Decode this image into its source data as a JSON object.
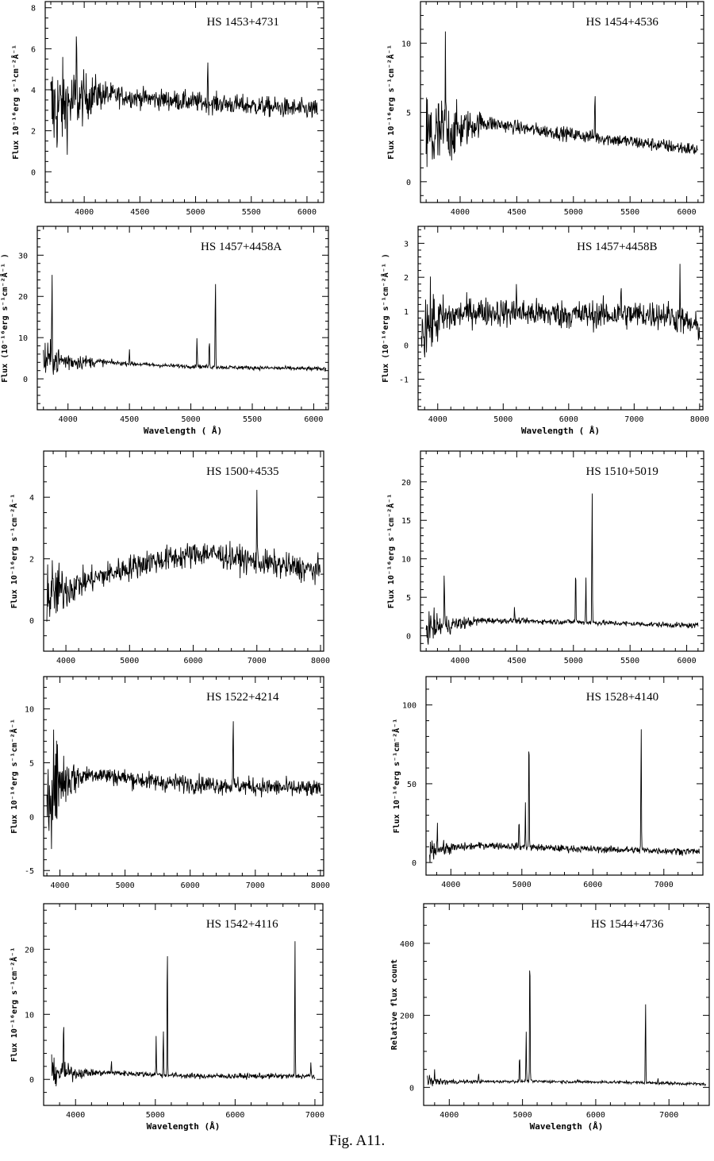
{
  "caption": "Fig. A11.",
  "chart_data": [
    {
      "type": "line",
      "title": "HS  1453+4731",
      "xlabel": "",
      "ylabel": "Flux 10⁻¹⁶erg s⁻¹cm⁻²Å⁻¹",
      "xlim": [
        3650,
        6150
      ],
      "ylim": [
        -1.5,
        8.3
      ],
      "xticks": [
        4000,
        4500,
        5000,
        5500,
        6000
      ],
      "yticks": [
        0,
        2,
        4,
        6,
        8
      ],
      "continuum": [
        [
          3700,
          3
        ],
        [
          4100,
          3.8
        ],
        [
          4500,
          3.6
        ],
        [
          5000,
          3.4
        ],
        [
          6100,
          3.0
        ]
      ],
      "noise": 0.35,
      "blue_noise": 1.6,
      "lines": [
        [
          3930,
          3.2
        ],
        [
          5110,
          2.0
        ]
      ]
    },
    {
      "type": "line",
      "title": "HS  1454+4536",
      "xlabel": "",
      "ylabel": "Flux 10⁻¹⁶erg s⁻¹cm⁻²Å⁻¹",
      "xlim": [
        3650,
        6150
      ],
      "ylim": [
        -1.5,
        13
      ],
      "xticks": [
        4000,
        4500,
        5000,
        5500,
        6000
      ],
      "yticks": [
        0,
        5,
        10
      ],
      "continuum": [
        [
          3700,
          3
        ],
        [
          4200,
          4.3
        ],
        [
          4600,
          3.8
        ],
        [
          5200,
          3.2
        ],
        [
          6100,
          2.3
        ]
      ],
      "noise": 0.35,
      "blue_noise": 2.5,
      "lines": [
        [
          3870,
          7.0
        ],
        [
          5190,
          3.6
        ]
      ]
    },
    {
      "type": "line",
      "title": "HS  1457+4458A",
      "xlabel": "Wavelength ( Å)",
      "ylabel": "Flux (10⁻¹⁶erg s⁻¹cm⁻²Å⁻¹ )",
      "xlim": [
        3750,
        6120
      ],
      "ylim": [
        -7.5,
        37
      ],
      "xticks": [
        4000,
        4500,
        5000,
        5500,
        6000
      ],
      "yticks": [
        0,
        10,
        20,
        30
      ],
      "continuum": [
        [
          3800,
          4.5
        ],
        [
          4300,
          4
        ],
        [
          4800,
          3.2
        ],
        [
          5300,
          2.8
        ],
        [
          6100,
          2.4
        ]
      ],
      "noise": 0.35,
      "blue_noise": 3,
      "lines": [
        [
          3870,
          26
        ],
        [
          4500,
          3.5
        ],
        [
          5050,
          7.8
        ],
        [
          5150,
          7
        ],
        [
          5200,
          23.5
        ]
      ]
    },
    {
      "type": "line",
      "title": "HS  1457+4458B",
      "xlabel": "Wavelength ( Å)",
      "ylabel": "Flux (10⁻¹⁶erg s⁻¹cm⁻²Å⁻¹ )",
      "xlim": [
        3700,
        8050
      ],
      "ylim": [
        -1.9,
        3.5
      ],
      "xticks": [
        4000,
        5000,
        6000,
        7000,
        8000
      ],
      "yticks": [
        -1,
        0,
        1,
        2,
        3
      ],
      "continuum": [
        [
          3750,
          0.6
        ],
        [
          4500,
          1.0
        ],
        [
          6000,
          0.9
        ],
        [
          7500,
          0.9
        ],
        [
          8000,
          0.5
        ]
      ],
      "noise": 0.3,
      "blue_noise": 0.6,
      "lines": [
        [
          5200,
          1.2
        ],
        [
          6800,
          1.0
        ],
        [
          7700,
          1.6
        ]
      ]
    },
    {
      "type": "line",
      "title": "HS  1500+4535",
      "xlabel": "",
      "ylabel": "Flux 10⁻¹⁶erg s⁻¹cm⁻²Å⁻¹",
      "xlim": [
        3650,
        8050
      ],
      "ylim": [
        -1,
        5.5
      ],
      "xticks": [
        4000,
        5000,
        6000,
        7000,
        8000
      ],
      "yticks": [
        0,
        2,
        4
      ],
      "continuum": [
        [
          3700,
          0.8
        ],
        [
          4500,
          1.4
        ],
        [
          5300,
          1.9
        ],
        [
          6200,
          2.2
        ],
        [
          7000,
          1.9
        ],
        [
          8000,
          1.6
        ]
      ],
      "noise": 0.3,
      "blue_noise": 0.6,
      "lines": [
        [
          7000,
          2.3
        ]
      ]
    },
    {
      "type": "line",
      "title": "HS  1510+5019",
      "xlabel": "",
      "ylabel": "Flux 10⁻¹⁶erg s⁻¹cm⁻²Å⁻¹",
      "xlim": [
        3650,
        6150
      ],
      "ylim": [
        -2,
        24
      ],
      "xticks": [
        4000,
        4500,
        5000,
        5500,
        6000
      ],
      "yticks": [
        0,
        5,
        10,
        15,
        20
      ],
      "continuum": [
        [
          3700,
          1
        ],
        [
          4200,
          2
        ],
        [
          5000,
          1.8
        ],
        [
          6100,
          1.3
        ]
      ],
      "noise": 0.25,
      "blue_noise": 1.2,
      "lines": [
        [
          3860,
          7.8
        ],
        [
          4480,
          2
        ],
        [
          5020,
          7.7
        ],
        [
          5110,
          5.7
        ],
        [
          5165,
          17.8
        ]
      ]
    },
    {
      "type": "line",
      "title": "HS  1522+4214",
      "xlabel": "",
      "ylabel": "Flux 10⁻¹⁶erg s⁻¹cm⁻²Å⁻¹",
      "xlim": [
        3750,
        8050
      ],
      "ylim": [
        -5.5,
        13
      ],
      "xticks": [
        4000,
        5000,
        6000,
        7000,
        8000
      ],
      "yticks": [
        -5,
        0,
        5,
        10
      ],
      "continuum": [
        [
          3800,
          3
        ],
        [
          4500,
          4
        ],
        [
          5500,
          3.2
        ],
        [
          7000,
          2.8
        ],
        [
          8000,
          2.5
        ]
      ],
      "noise": 0.6,
      "blue_noise": 3.5,
      "lines": [
        [
          6660,
          6.3
        ]
      ]
    },
    {
      "type": "line",
      "title": "HS  1528+4140",
      "xlabel": "",
      "ylabel": "Flux 10⁻¹⁶erg s⁻¹cm⁻²Å⁻¹",
      "xlim": [
        3650,
        7550
      ],
      "ylim": [
        -8,
        118
      ],
      "xticks": [
        4000,
        5000,
        6000,
        7000
      ],
      "yticks": [
        0,
        50,
        100
      ],
      "continuum": [
        [
          3700,
          8
        ],
        [
          4500,
          11
        ],
        [
          5500,
          9
        ],
        [
          7500,
          7
        ]
      ],
      "noise": 1.6,
      "blue_noise": 3,
      "lines": [
        [
          3810,
          20
        ],
        [
          4960,
          19
        ],
        [
          5050,
          27
        ],
        [
          5100,
          80
        ],
        [
          6680,
          84
        ]
      ]
    },
    {
      "type": "line",
      "title": "HS  1542+4116",
      "xlabel": "Wavelength (Å)",
      "ylabel": "Flux 10⁻¹⁶erg s⁻¹cm⁻²Å⁻¹",
      "xlim": [
        3600,
        7100
      ],
      "ylim": [
        -4,
        27
      ],
      "xticks": [
        4000,
        5000,
        6000,
        7000
      ],
      "yticks": [
        0,
        10,
        20
      ],
      "continuum": [
        [
          3700,
          1
        ],
        [
          4500,
          1
        ],
        [
          5500,
          0.5
        ],
        [
          7000,
          0.5
        ]
      ],
      "noise": 0.3,
      "blue_noise": 1.2,
      "lines": [
        [
          3850,
          9
        ],
        [
          4450,
          2
        ],
        [
          5010,
          6
        ],
        [
          5100,
          7
        ],
        [
          5150,
          22
        ],
        [
          6750,
          22
        ],
        [
          6950,
          2
        ]
      ]
    },
    {
      "type": "line",
      "title": "HS  1544+4736",
      "xlabel": "Wavelength (Å)",
      "ylabel": "Relative flux count",
      "xlim": [
        3650,
        7550
      ],
      "ylim": [
        -50,
        510
      ],
      "xticks": [
        4000,
        5000,
        6000,
        7000
      ],
      "yticks": [
        0,
        200,
        400
      ],
      "continuum": [
        [
          3700,
          15
        ],
        [
          5000,
          17
        ],
        [
          6500,
          14
        ],
        [
          7500,
          9
        ]
      ],
      "noise": 3,
      "blue_noise": 8,
      "lines": [
        [
          3800,
          47
        ],
        [
          4400,
          25
        ],
        [
          4960,
          75
        ],
        [
          5050,
          135
        ],
        [
          5100,
          410
        ],
        [
          6680,
          235
        ],
        [
          6850,
          14
        ]
      ]
    }
  ]
}
